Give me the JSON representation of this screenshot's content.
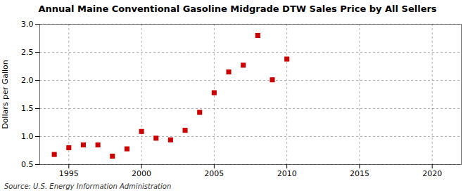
{
  "chart_data": {
    "type": "scatter",
    "title": "Annual Maine Conventional Gasoline Midgrade DTW Sales Price by All Sellers",
    "ylabel": "Dollars per Gallon",
    "annotations": [
      "Source: U.S. Energy Information Administration"
    ],
    "x": [
      1994,
      1995,
      1996,
      1997,
      1998,
      1999,
      2000,
      2001,
      2002,
      2003,
      2004,
      2005,
      2006,
      2007,
      2008,
      2009,
      2010
    ],
    "values": [
      0.68,
      0.8,
      0.85,
      0.85,
      0.65,
      0.78,
      1.09,
      0.97,
      0.94,
      1.11,
      1.43,
      1.78,
      2.15,
      2.27,
      2.8,
      2.01,
      2.38
    ],
    "color": "#cc0000",
    "marker": "square",
    "xlim": [
      1993,
      2022
    ],
    "ylim": [
      0.5,
      3.0
    ],
    "xticks": [
      1995,
      2000,
      2005,
      2010,
      2015,
      2020
    ],
    "yticks": [
      0.5,
      {
        "value": 1.0,
        "label": "1.0"
      },
      1.5,
      {
        "value": 2.0,
        "label": "2.0"
      },
      2.5,
      {
        "value": 3.0,
        "label": "3.0"
      }
    ],
    "grid": true
  }
}
